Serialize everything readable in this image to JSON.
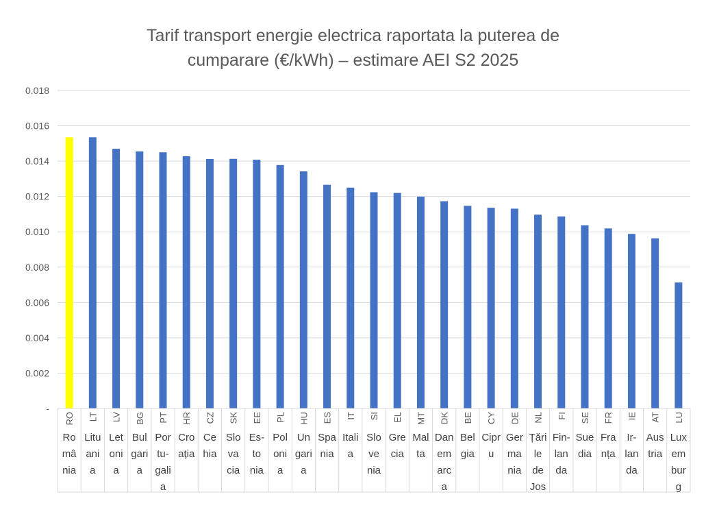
{
  "chart_data": {
    "type": "bar",
    "title_lines": [
      "Tarif transport energie electrica  raportata la puterea de",
      "cumparare (€/kWh) – estimare AEI S2 2025"
    ],
    "xlabel": "",
    "ylabel": "",
    "ylim": [
      0,
      0.018
    ],
    "yticks": [
      "-",
      "0.002",
      "0.004",
      "0.006",
      "0.008",
      "0.010",
      "0.012",
      "0.014",
      "0.016",
      "0.018"
    ],
    "grid": true,
    "legend": "none",
    "colors": {
      "bar": "#4472C4",
      "highlight": "#FFFF00",
      "grid": "#D9D9D9",
      "axis_text": "#595959"
    },
    "highlight_index": 0,
    "categories": [
      {
        "code": "RO",
        "name_lines": [
          "Ro",
          "mâ",
          "nia"
        ]
      },
      {
        "code": "LT",
        "name_lines": [
          "Litu",
          "ani",
          "a"
        ]
      },
      {
        "code": "LV",
        "name_lines": [
          "Let",
          "oni",
          "a"
        ]
      },
      {
        "code": "BG",
        "name_lines": [
          "Bul",
          "gari",
          "a"
        ]
      },
      {
        "code": "PT",
        "name_lines": [
          "Por",
          "tu-",
          "gali",
          "a"
        ]
      },
      {
        "code": "HR",
        "name_lines": [
          "Cro",
          "ația"
        ]
      },
      {
        "code": "CZ",
        "name_lines": [
          "Ce",
          "hia"
        ]
      },
      {
        "code": "SK",
        "name_lines": [
          "Slo",
          "va",
          "cia"
        ]
      },
      {
        "code": "EE",
        "name_lines": [
          "Es-",
          "to",
          "nia"
        ]
      },
      {
        "code": "PL",
        "name_lines": [
          "Pol",
          "oni",
          "a"
        ]
      },
      {
        "code": "HU",
        "name_lines": [
          "Un",
          "gari",
          "a"
        ]
      },
      {
        "code": "ES",
        "name_lines": [
          "Spa",
          "nia"
        ]
      },
      {
        "code": "IT",
        "name_lines": [
          "Itali",
          "a"
        ]
      },
      {
        "code": "SI",
        "name_lines": [
          "Slo",
          "ve",
          "nia"
        ]
      },
      {
        "code": "EL",
        "name_lines": [
          "Gre",
          "cia"
        ]
      },
      {
        "code": "MT",
        "name_lines": [
          "Mal",
          "ta"
        ]
      },
      {
        "code": "DK",
        "name_lines": [
          "Dan",
          "em",
          "arc",
          "a"
        ]
      },
      {
        "code": "BE",
        "name_lines": [
          "Bel",
          "gia"
        ]
      },
      {
        "code": "CY",
        "name_lines": [
          "Cipr",
          "u"
        ]
      },
      {
        "code": "DE",
        "name_lines": [
          "Ger",
          "ma",
          "nia"
        ]
      },
      {
        "code": "NL",
        "name_lines": [
          "Țări",
          "le",
          "de",
          "Jos"
        ]
      },
      {
        "code": "FI",
        "name_lines": [
          "Fin-",
          "lan",
          "da"
        ]
      },
      {
        "code": "SE",
        "name_lines": [
          "Sue",
          "dia"
        ]
      },
      {
        "code": "FR",
        "name_lines": [
          "Fra",
          "nța"
        ]
      },
      {
        "code": "IE",
        "name_lines": [
          "Ir-",
          "lan",
          "da"
        ]
      },
      {
        "code": "AT",
        "name_lines": [
          "Aus",
          "tria"
        ]
      },
      {
        "code": "LU",
        "name_lines": [
          "Lux",
          "em",
          "bur",
          "g"
        ]
      }
    ],
    "values": [
      0.01535,
      0.01535,
      0.0147,
      0.01455,
      0.0145,
      0.01428,
      0.01412,
      0.01413,
      0.01408,
      0.01378,
      0.01342,
      0.01266,
      0.0125,
      0.01224,
      0.0122,
      0.01199,
      0.01173,
      0.01147,
      0.01136,
      0.01131,
      0.01097,
      0.01087,
      0.01037,
      0.01019,
      0.00988,
      0.00963,
      0.00713
    ]
  }
}
